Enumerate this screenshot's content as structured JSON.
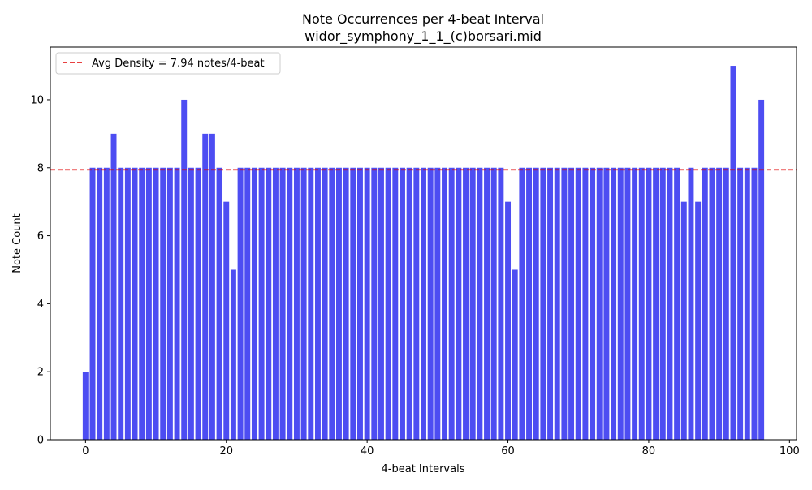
{
  "chart_data": {
    "type": "bar",
    "title": "Note Occurrences per 4-beat Interval",
    "subtitle": "widor_symphony_1_1_(c)borsari.mid",
    "xlabel": "4-beat Intervals",
    "ylabel": "Note Count",
    "x": [
      0,
      1,
      2,
      3,
      4,
      5,
      6,
      7,
      8,
      9,
      10,
      11,
      12,
      13,
      14,
      15,
      16,
      17,
      18,
      19,
      20,
      21,
      22,
      23,
      24,
      25,
      26,
      27,
      28,
      29,
      30,
      31,
      32,
      33,
      34,
      35,
      36,
      37,
      38,
      39,
      40,
      41,
      42,
      43,
      44,
      45,
      46,
      47,
      48,
      49,
      50,
      51,
      52,
      53,
      54,
      55,
      56,
      57,
      58,
      59,
      60,
      61,
      62,
      63,
      64,
      65,
      66,
      67,
      68,
      69,
      70,
      71,
      72,
      73,
      74,
      75,
      76,
      77,
      78,
      79,
      80,
      81,
      82,
      83,
      84,
      85,
      86,
      87,
      88,
      89,
      90,
      91,
      92,
      93,
      94,
      95,
      96
    ],
    "values": [
      2,
      8,
      8,
      8,
      9,
      8,
      8,
      8,
      8,
      8,
      8,
      8,
      8,
      8,
      10,
      8,
      8,
      9,
      9,
      8,
      7,
      5,
      8,
      8,
      8,
      8,
      8,
      8,
      8,
      8,
      8,
      8,
      8,
      8,
      8,
      8,
      8,
      8,
      8,
      8,
      8,
      8,
      8,
      8,
      8,
      8,
      8,
      8,
      8,
      8,
      8,
      8,
      8,
      8,
      8,
      8,
      8,
      8,
      8,
      8,
      7,
      5,
      8,
      8,
      8,
      8,
      8,
      8,
      8,
      8,
      8,
      8,
      8,
      8,
      8,
      8,
      8,
      8,
      8,
      8,
      8,
      8,
      8,
      8,
      8,
      7,
      8,
      7,
      8,
      8,
      8,
      8,
      11,
      8,
      8,
      8,
      10
    ],
    "xlim": [
      -5,
      101
    ],
    "ylim": [
      0,
      11.55
    ],
    "xticks": [
      0,
      20,
      40,
      60,
      80,
      100
    ],
    "yticks": [
      0,
      2,
      4,
      6,
      8,
      10
    ],
    "bar_color": "#4d4df2",
    "average": {
      "value": 7.94,
      "label": "Avg Density = 7.94 notes/4-beat",
      "color": "#e00000",
      "style": "dashed"
    },
    "legend_position": "top-left",
    "grid": false
  }
}
